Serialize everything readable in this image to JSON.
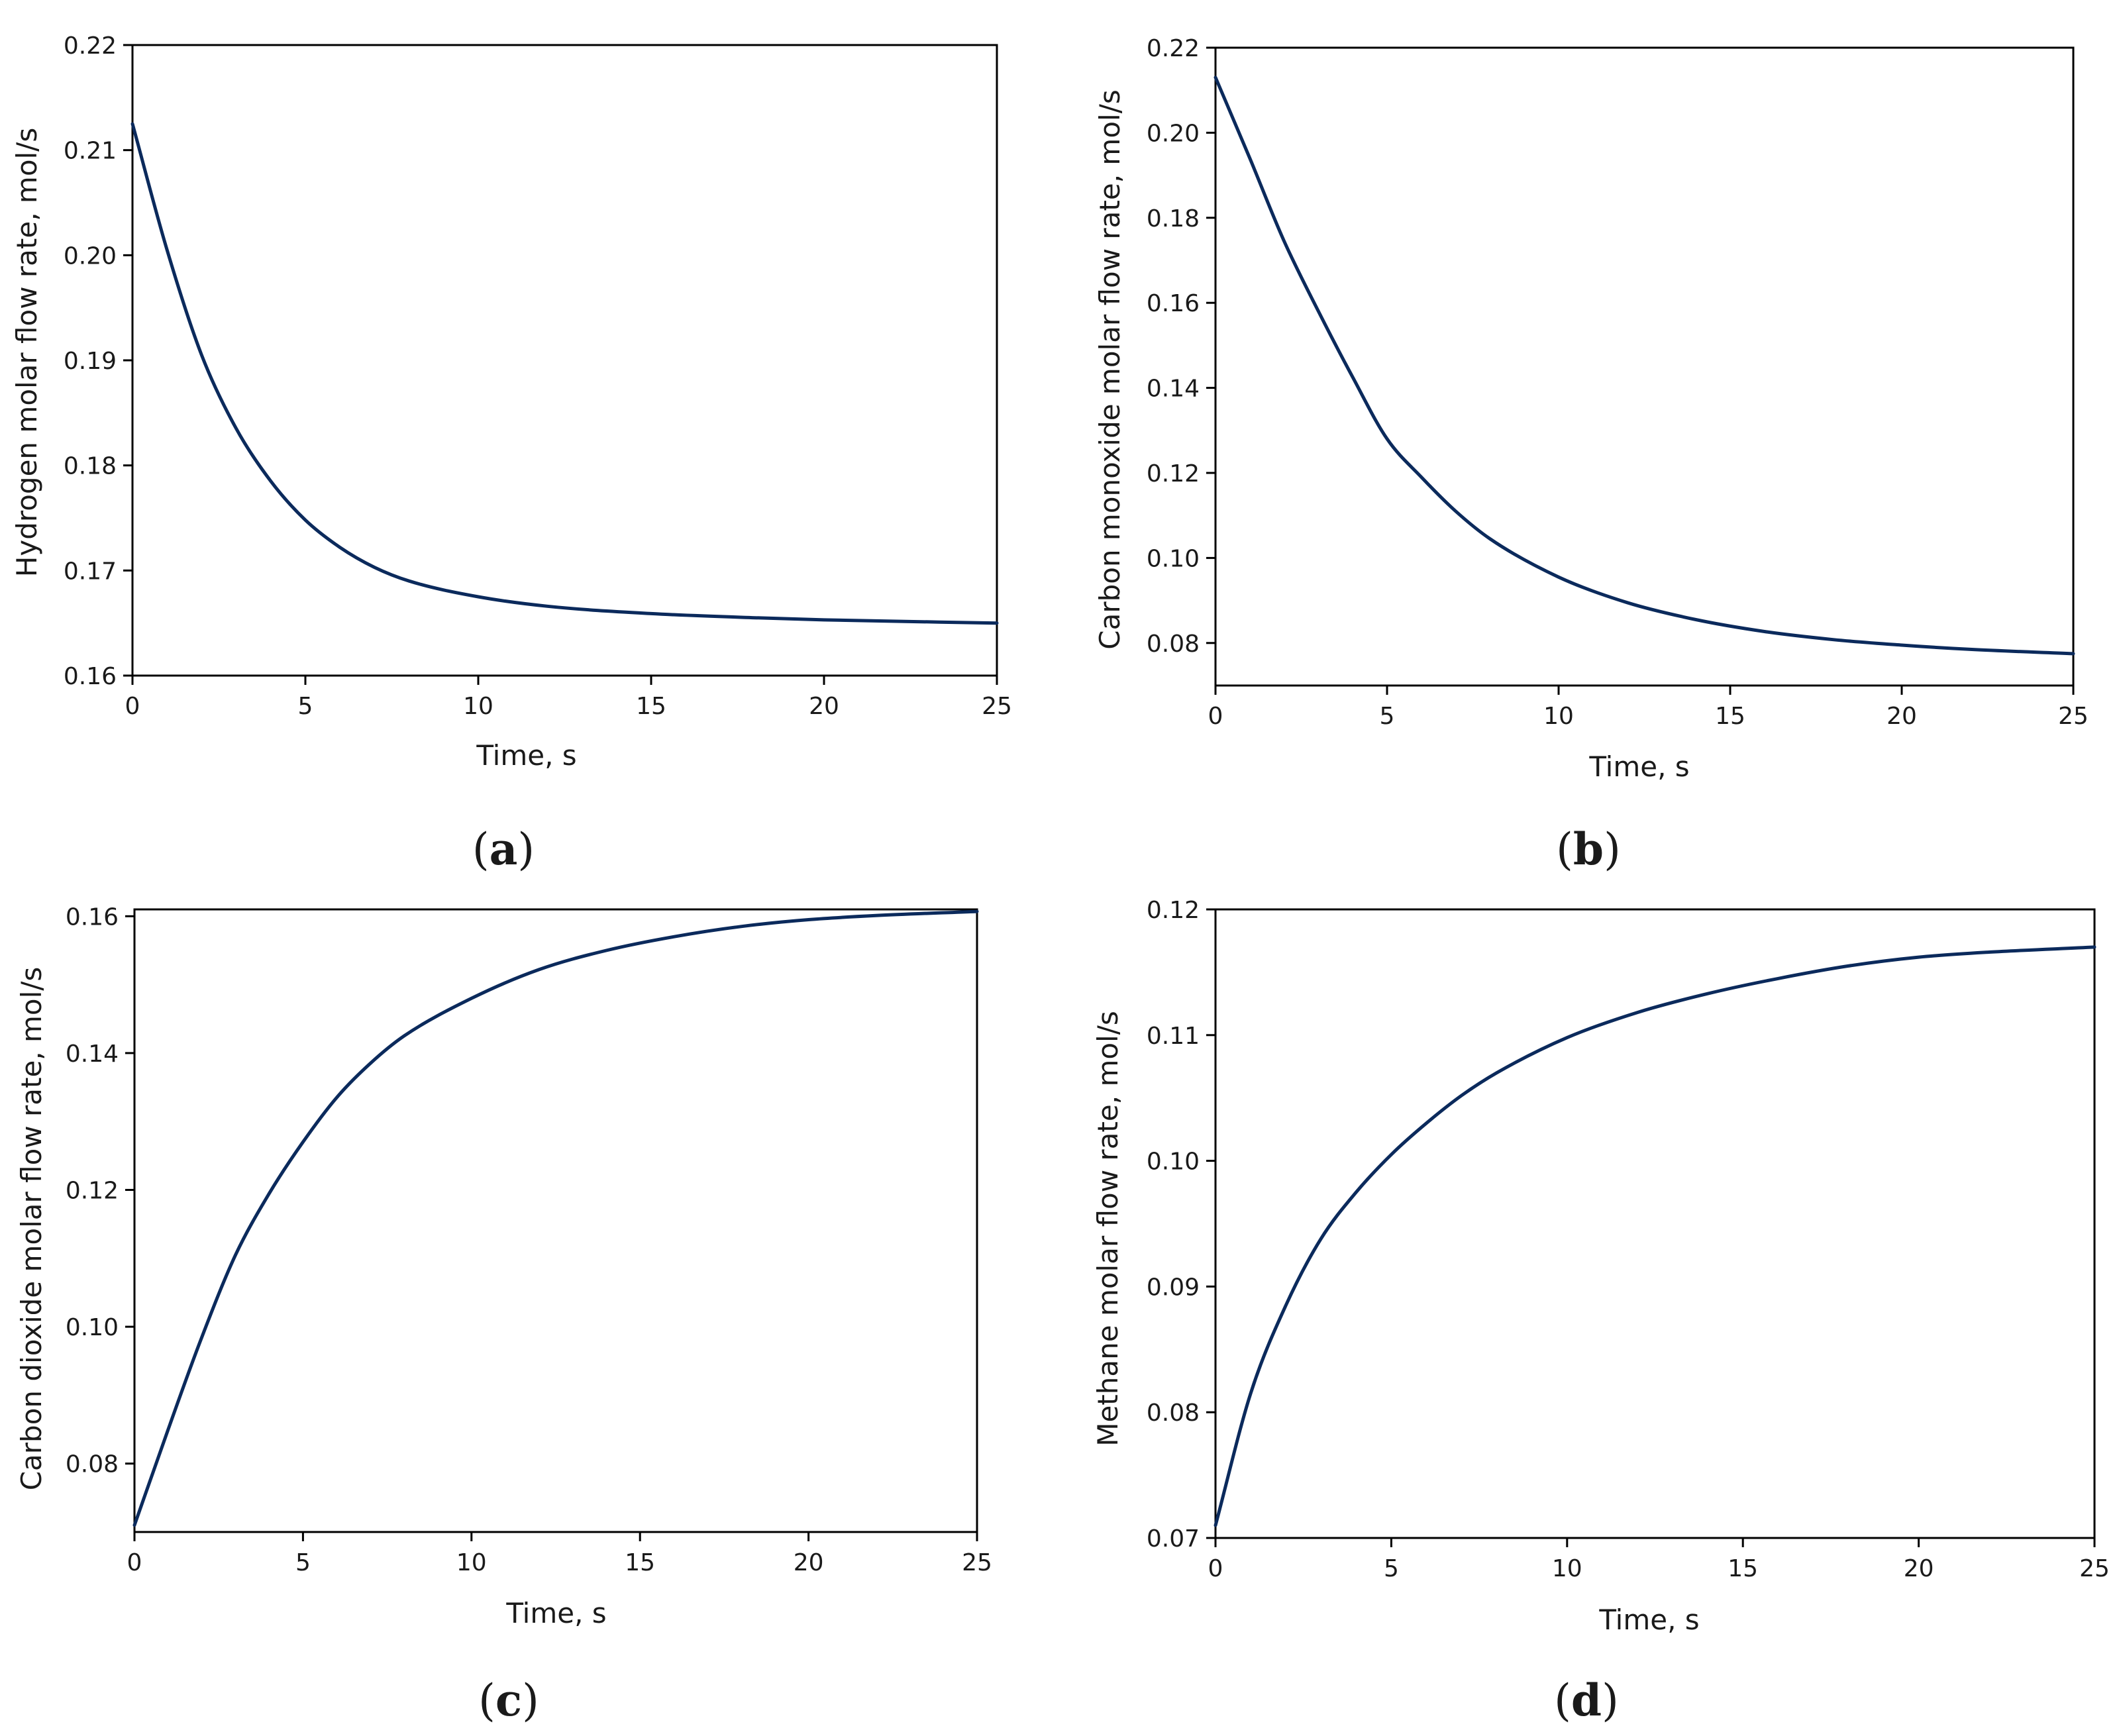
{
  "chart_data": [
    {
      "panel": "a",
      "type": "line",
      "xlabel": "Time, s",
      "ylabel": "Hydrogen molar flow rate, mol/s",
      "xlim": [
        0,
        25
      ],
      "ylim": [
        0.16,
        0.22
      ],
      "xticks": [
        "0",
        "5",
        "10",
        "15",
        "20",
        "25"
      ],
      "yticks": [
        "0.16",
        "0.17",
        "0.18",
        "0.19",
        "0.20",
        "0.21",
        "0.22"
      ],
      "series": [
        {
          "color": "#0b2a5c",
          "x": [
            0,
            1,
            2,
            3,
            4,
            5,
            6,
            7,
            8,
            10,
            12,
            15,
            18,
            20,
            25
          ],
          "y": [
            0.2125,
            0.2005,
            0.1905,
            0.1835,
            0.1785,
            0.1748,
            0.1722,
            0.1703,
            0.169,
            0.1675,
            0.1666,
            0.1659,
            0.1655,
            0.1653,
            0.165
          ]
        }
      ]
    },
    {
      "panel": "b",
      "type": "line",
      "xlabel": "Time, s",
      "ylabel": "Carbon monoxide molar flow rate, mol/s",
      "xlim": [
        0,
        25
      ],
      "ylim": [
        0.07,
        0.22
      ],
      "xticks": [
        "0",
        "5",
        "10",
        "15",
        "20",
        "25"
      ],
      "yticks": [
        "0.08",
        "0.10",
        "0.12",
        "0.14",
        "0.16",
        "0.18",
        "0.20",
        "0.22"
      ],
      "series": [
        {
          "color": "#0b2a5c",
          "x": [
            0,
            1,
            2,
            3,
            4,
            5,
            6,
            7,
            8,
            10,
            12,
            14,
            16,
            18,
            20,
            22,
            25
          ],
          "y": [
            0.213,
            0.194,
            0.1745,
            0.158,
            0.1425,
            0.128,
            0.119,
            0.111,
            0.1045,
            0.0955,
            0.0895,
            0.0855,
            0.0827,
            0.0808,
            0.0795,
            0.0785,
            0.0775
          ]
        }
      ]
    },
    {
      "panel": "c",
      "type": "line",
      "xlabel": "Time, s",
      "ylabel": "Carbon dioxide molar flow rate, mol/s",
      "xlim": [
        0,
        25
      ],
      "ylim": [
        0.07,
        0.161
      ],
      "xticks": [
        "0",
        "5",
        "10",
        "15",
        "20",
        "25"
      ],
      "yticks": [
        "0.08",
        "0.10",
        "0.12",
        "0.14",
        "0.16"
      ],
      "series": [
        {
          "color": "#0b2a5c",
          "x": [
            0,
            1,
            2,
            3,
            4,
            5,
            6,
            7,
            8,
            10,
            12,
            14,
            16,
            18,
            20,
            22,
            25
          ],
          "y": [
            0.071,
            0.085,
            0.0985,
            0.1105,
            0.1195,
            0.127,
            0.1335,
            0.1385,
            0.1425,
            0.148,
            0.1522,
            0.155,
            0.157,
            0.1585,
            0.1595,
            0.1601,
            0.1607
          ]
        }
      ]
    },
    {
      "panel": "d",
      "type": "line",
      "xlabel": "Time, s",
      "ylabel": "Methane molar flow rate, mol/s",
      "xlim": [
        0,
        25
      ],
      "ylim": [
        0.07,
        0.12
      ],
      "xticks": [
        "0",
        "5",
        "10",
        "15",
        "20",
        "25"
      ],
      "yticks": [
        "0.07",
        "0.08",
        "0.09",
        "0.10",
        "0.11",
        "0.12"
      ],
      "series": [
        {
          "color": "#0b2a5c",
          "x": [
            0,
            1,
            2,
            3,
            4,
            5,
            6,
            7,
            8,
            10,
            12,
            14,
            16,
            18,
            20,
            22,
            25
          ],
          "y": [
            0.071,
            0.0815,
            0.0885,
            0.0938,
            0.0975,
            0.1005,
            0.103,
            0.1052,
            0.107,
            0.1098,
            0.1118,
            0.1133,
            0.1145,
            0.1155,
            0.1162,
            0.1166,
            0.117
          ]
        }
      ]
    }
  ],
  "panel_labels": {
    "a": {
      "open": "(",
      "letter": "a",
      "close": ")"
    },
    "b": {
      "open": "(",
      "letter": "b",
      "close": ")"
    },
    "c": {
      "open": "(",
      "letter": "c",
      "close": ")"
    },
    "d": {
      "open": "(",
      "letter": "d",
      "close": ")"
    }
  }
}
